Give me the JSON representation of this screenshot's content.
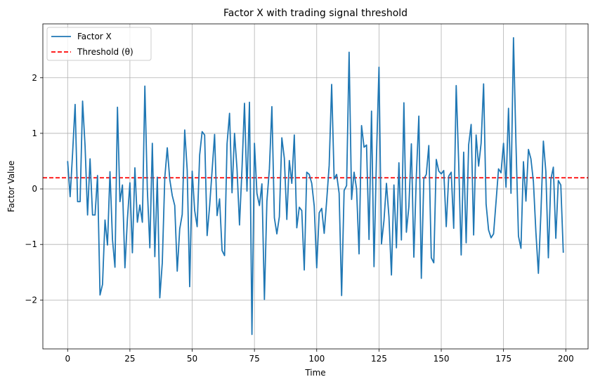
{
  "chart_data": {
    "type": "line",
    "title": "Factor X with trading signal threshold",
    "xlabel": "Time",
    "ylabel": "Factor Value",
    "xlim": [
      -9.95,
      208.95
    ],
    "ylim": [
      -2.88,
      2.97
    ],
    "xticks": [
      0,
      25,
      50,
      75,
      100,
      125,
      150,
      175,
      200
    ],
    "yticks": [
      -2,
      -1,
      0,
      1,
      2
    ],
    "xtick_labels": [
      "0",
      "25",
      "50",
      "75",
      "100",
      "125",
      "150",
      "175",
      "200"
    ],
    "ytick_labels": [
      "−2",
      "−1",
      "0",
      "1",
      "2"
    ],
    "grid": true,
    "legend_position": "top-left",
    "colors": {
      "series": "#1f77b4",
      "threshold": "#ff0000",
      "grid": "#b0b0b0"
    },
    "threshold": {
      "name": "Threshold (θ)",
      "value": 0.2
    },
    "series": [
      {
        "name": "Factor X",
        "x_start": 0,
        "x_step": 1,
        "values": [
          0.5,
          -0.14,
          0.65,
          1.52,
          -0.23,
          -0.23,
          1.58,
          0.77,
          -0.47,
          0.54,
          -0.47,
          -0.47,
          0.24,
          -1.91,
          -1.72,
          -0.56,
          -1.01,
          0.31,
          -0.91,
          -1.41,
          1.47,
          -0.23,
          0.07,
          -1.42,
          -0.54,
          0.11,
          -1.15,
          0.38,
          -0.6,
          -0.29,
          -0.6,
          1.85,
          -0.01,
          -1.06,
          0.82,
          -1.22,
          0.21,
          -1.96,
          -1.33,
          0.2,
          0.74,
          0.17,
          -0.12,
          -0.3,
          -1.48,
          -0.72,
          -0.46,
          1.06,
          0.34,
          -1.76,
          0.32,
          -0.39,
          -0.68,
          0.61,
          1.03,
          0.97,
          -0.84,
          -0.31,
          0.33,
          0.98,
          -0.48,
          -0.18,
          -1.11,
          -1.2,
          0.81,
          1.36,
          -0.07,
          1.0,
          0.36,
          -0.65,
          0.36,
          1.54,
          -0.04,
          1.56,
          -2.62,
          0.82,
          -0.08,
          -0.3,
          0.09,
          -1.99,
          -0.22,
          0.36,
          1.48,
          -0.52,
          -0.81,
          -0.5,
          0.92,
          0.55,
          -0.55,
          0.51,
          0.1,
          0.97,
          -0.7,
          -0.33,
          -0.39,
          -1.46,
          0.3,
          0.26,
          0.1,
          -0.31,
          -1.42,
          -0.43,
          -0.35,
          -0.8,
          -0.21,
          0.42,
          1.88,
          0.18,
          0.26,
          -0.08,
          -1.92,
          -0.03,
          0.06,
          2.46,
          -0.19,
          0.3,
          0.0,
          -1.17,
          1.14,
          0.75,
          0.79,
          -0.91,
          1.4,
          -1.4,
          0.59,
          2.19,
          -0.99,
          -0.57,
          0.1,
          -0.5,
          -1.55,
          0.07,
          -1.06,
          0.47,
          -0.92,
          1.55,
          -0.78,
          -0.32,
          0.81,
          -1.23,
          0.23,
          1.31,
          -1.61,
          0.18,
          0.26,
          0.78,
          -1.24,
          -1.33,
          0.53,
          0.32,
          0.27,
          0.33,
          -0.68,
          0.23,
          0.3,
          -0.71,
          1.86,
          0.47,
          -1.19,
          0.66,
          -0.97,
          0.79,
          1.16,
          -0.83,
          0.97,
          0.41,
          0.82,
          1.89,
          -0.27,
          -0.74,
          -0.88,
          -0.81,
          -0.23,
          0.36,
          0.29,
          0.82,
          0.03,
          1.45,
          -0.08,
          2.72,
          0.81,
          -0.85,
          -1.07,
          0.49,
          -0.22,
          0.71,
          0.54,
          0.13,
          -0.78,
          -1.52,
          -0.45,
          0.86,
          0.31,
          -1.24,
          0.17,
          0.39,
          -0.89,
          0.15,
          0.07,
          -1.15
        ]
      }
    ]
  }
}
